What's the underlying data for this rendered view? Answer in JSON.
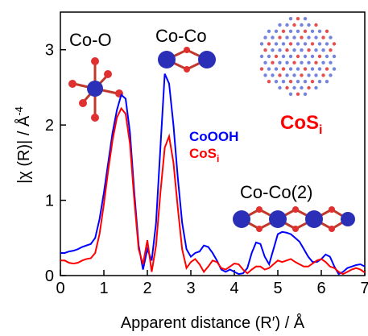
{
  "chart_data": {
    "type": "line",
    "xlabel": "Apparent distance (R′) / Å",
    "ylabel": {
      "text": "|χ (R)| / Å",
      "sup": "-4"
    },
    "annotations": [
      "Co-O",
      "Co-Co",
      "Co-Co(2)"
    ],
    "inset_label": {
      "text": "CoS",
      "sub": "i"
    },
    "xlim": [
      0,
      7
    ],
    "ylim": [
      0,
      3.5
    ],
    "xticks": [
      0,
      1,
      2,
      3,
      4,
      5,
      6,
      7
    ],
    "yticks": [
      0,
      1,
      2,
      3
    ],
    "grid": false,
    "x": [
      0,
      0.1,
      0.2,
      0.3,
      0.4,
      0.5,
      0.6,
      0.7,
      0.8,
      0.9,
      1,
      1.1,
      1.2,
      1.3,
      1.4,
      1.5,
      1.6,
      1.7,
      1.8,
      1.9,
      2,
      2.1,
      2.2,
      2.3,
      2.4,
      2.5,
      2.6,
      2.7,
      2.8,
      2.9,
      3,
      3.1,
      3.2,
      3.3,
      3.4,
      3.5,
      3.6,
      3.7,
      3.8,
      3.9,
      4,
      4.1,
      4.2,
      4.3,
      4.4,
      4.5,
      4.6,
      4.7,
      4.8,
      4.9,
      5,
      5.1,
      5.2,
      5.3,
      5.4,
      5.5,
      5.6,
      5.7,
      5.8,
      5.9,
      6,
      6.1,
      6.2,
      6.3,
      6.4,
      6.5,
      6.6,
      6.7,
      6.8,
      6.9,
      7
    ],
    "series": [
      {
        "name": "CoOOH",
        "color": "#0000ff",
        "values": [
          0.3,
          0.3,
          0.32,
          0.33,
          0.35,
          0.38,
          0.4,
          0.42,
          0.5,
          0.75,
          1.1,
          1.5,
          1.9,
          2.2,
          2.4,
          2.35,
          1.9,
          1.1,
          0.4,
          0.08,
          0.35,
          0.2,
          0.7,
          1.7,
          2.68,
          2.55,
          2.0,
          1.3,
          0.7,
          0.35,
          0.25,
          0.3,
          0.32,
          0.4,
          0.38,
          0.3,
          0.2,
          0.08,
          0.05,
          0.08,
          0.05,
          0.02,
          0.03,
          0.1,
          0.3,
          0.44,
          0.42,
          0.25,
          0.15,
          0.35,
          0.55,
          0.58,
          0.57,
          0.55,
          0.5,
          0.45,
          0.35,
          0.25,
          0.18,
          0.18,
          0.22,
          0.28,
          0.25,
          0.12,
          0.02,
          0.05,
          0.1,
          0.12,
          0.14,
          0.15,
          0.12
        ]
      },
      {
        "name": "CoS",
        "name_sub": "i",
        "color": "#ff0000",
        "values": [
          0.2,
          0.2,
          0.17,
          0.16,
          0.17,
          0.2,
          0.22,
          0.23,
          0.3,
          0.55,
          0.95,
          1.4,
          1.8,
          2.1,
          2.22,
          2.15,
          1.75,
          1.0,
          0.35,
          0.15,
          0.47,
          0.05,
          0.4,
          1.1,
          1.7,
          1.85,
          1.5,
          0.9,
          0.35,
          0.1,
          0.18,
          0.22,
          0.15,
          0.05,
          0.12,
          0.2,
          0.18,
          0.1,
          0.08,
          0.12,
          0.16,
          0.15,
          0.08,
          0.03,
          0.08,
          0.12,
          0.12,
          0.08,
          0.1,
          0.15,
          0.2,
          0.18,
          0.2,
          0.22,
          0.18,
          0.15,
          0.12,
          0.12,
          0.16,
          0.2,
          0.22,
          0.18,
          0.12,
          0.1,
          0.05,
          0.02,
          0.05,
          0.08,
          0.1,
          0.08,
          0.04
        ]
      }
    ]
  }
}
